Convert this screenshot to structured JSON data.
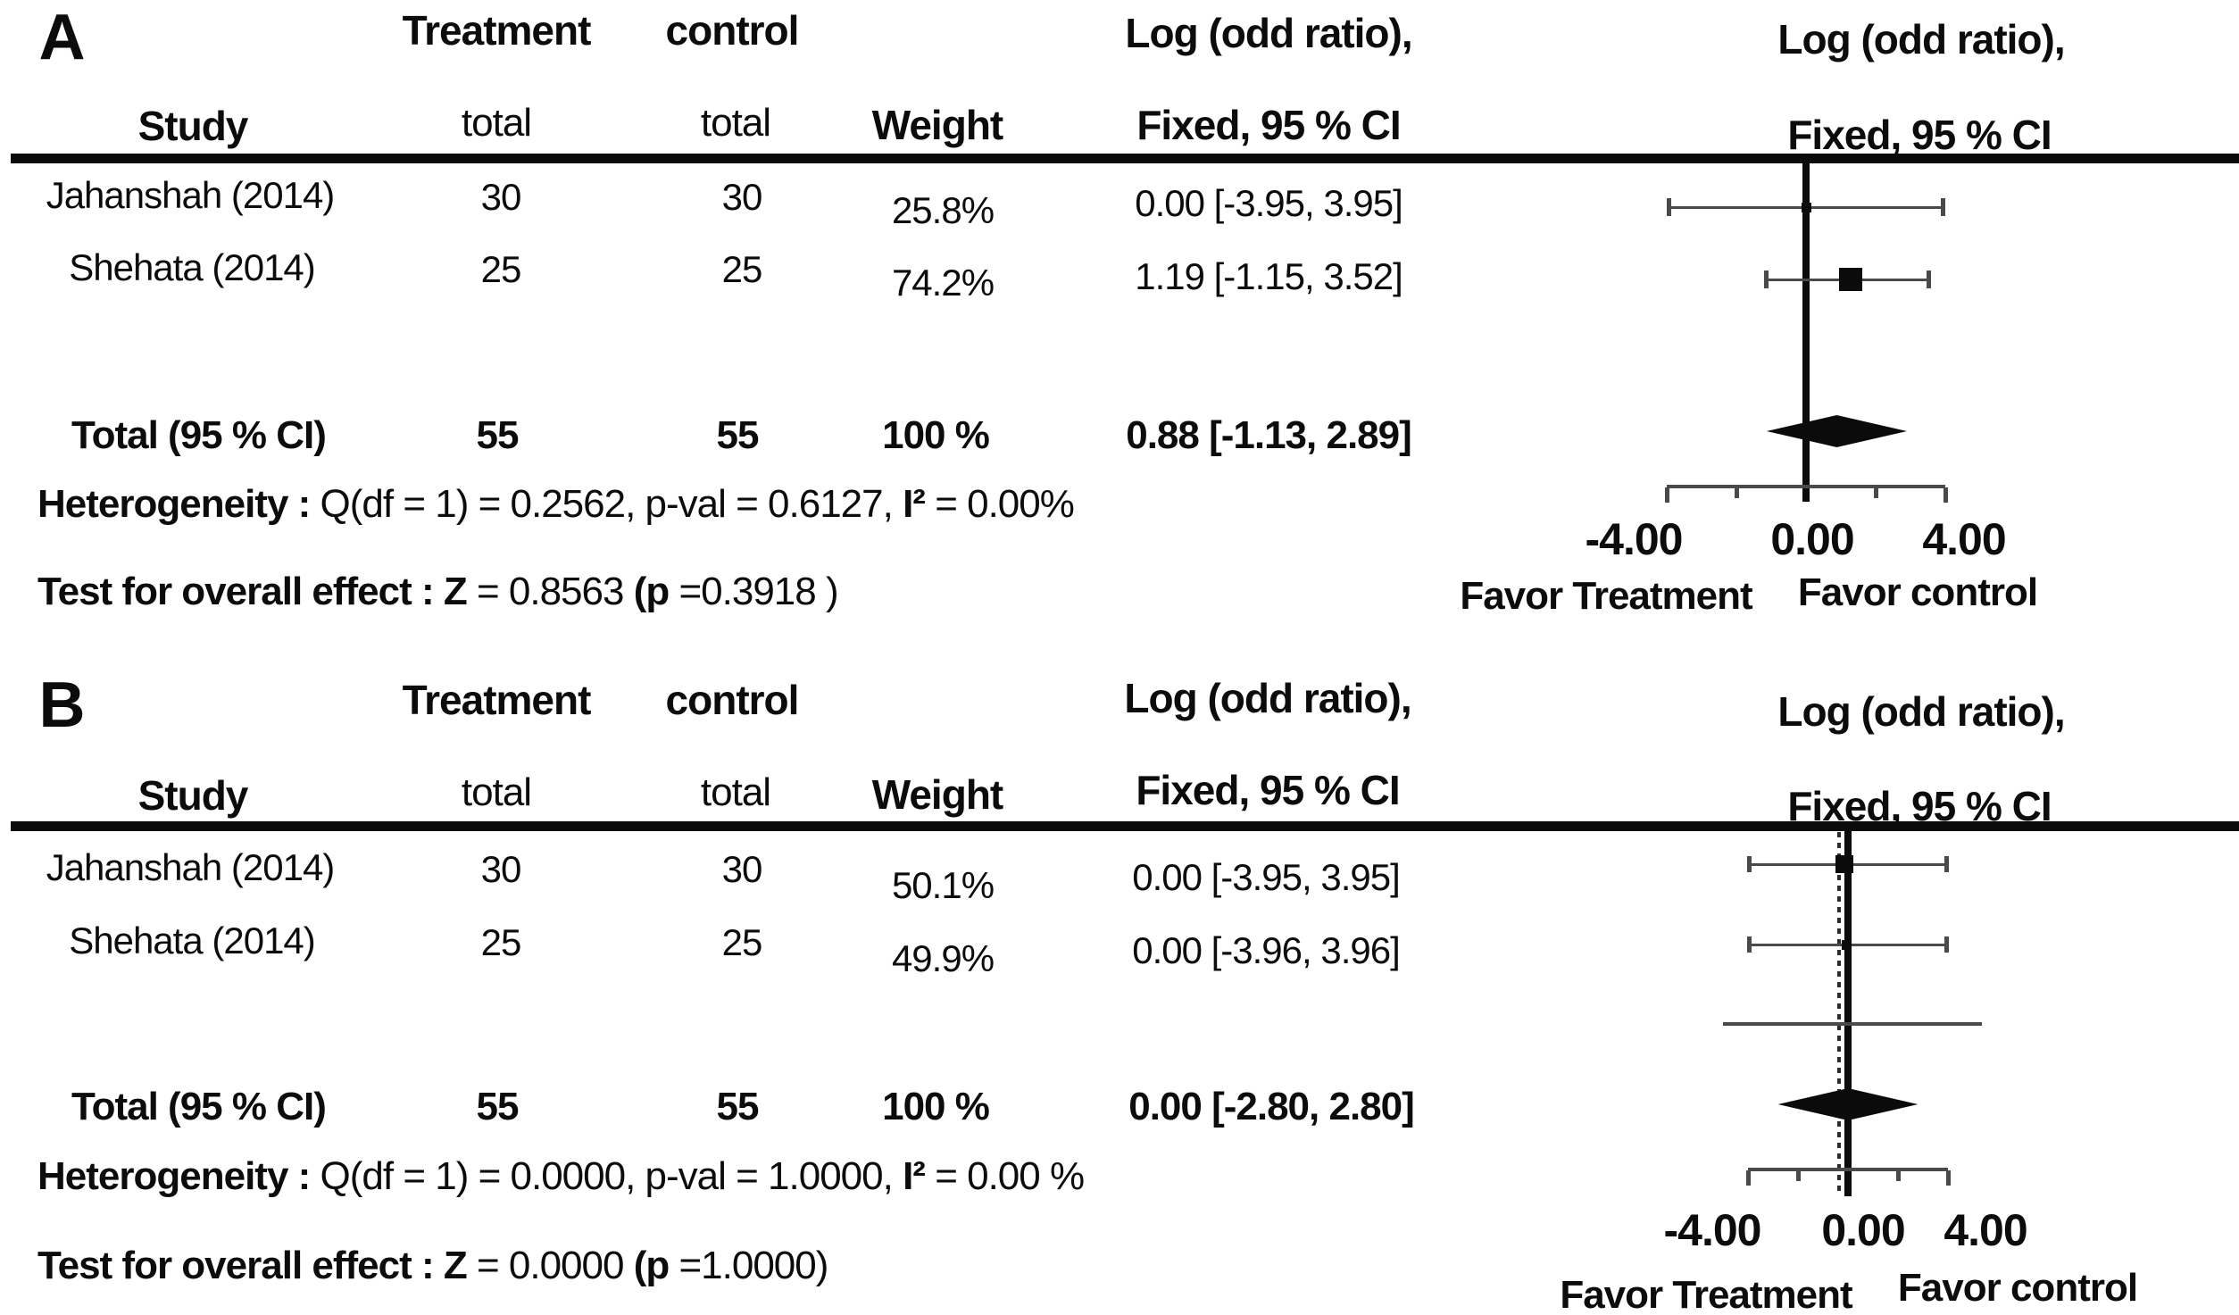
{
  "figure": {
    "panels": [
      {
        "panel_label": "A",
        "header": {
          "treatment": "Treatment",
          "control": "control",
          "study": "Study",
          "treatment_sub": "total",
          "control_sub": "total",
          "weight": "Weight",
          "effect_l1": "Log (odd ratio),",
          "effect_l2": "Fixed, 95 % CI",
          "plot_l1": "Log (odd ratio),",
          "plot_l2": "Fixed, 95 % CI"
        },
        "rows": [
          {
            "study": "Jahanshah (2014)",
            "treatment_total": "30",
            "control_total": "30",
            "weight": "25.8%",
            "ci_text": "0.00 [-3.95, 3.95]"
          },
          {
            "study": "Shehata (2014)",
            "treatment_total": "25",
            "control_total": "25",
            "weight": "74.2%",
            "ci_text": "1.19 [-1.15, 3.52]"
          }
        ],
        "total": {
          "label": "Total (95 % CI)",
          "treatment_total": "55",
          "control_total": "55",
          "weight": "100 %",
          "ci_text": "0.88 [-1.13, 2.89]"
        },
        "het_bold": "Heterogeneity :",
        "het_text": " Q(df = 1) = 0.2562, p-val = 0.6127, ",
        "het_i2": "I²",
        "het_tail": " = 0.00%",
        "test_bold": "Test for overall effect : Z",
        "test_mid": " = 0.8563 ",
        "test_pbold": "(p",
        "test_tail": " =0.3918 )",
        "axis_labels": [
          "-4.00",
          "0.00",
          "4.00"
        ],
        "favor_left": "Favor Treatment",
        "favor_right": "Favor control"
      },
      {
        "panel_label": "B",
        "header": {
          "treatment": "Treatment",
          "control": "control",
          "study": "Study",
          "treatment_sub": "total",
          "control_sub": "total",
          "weight": "Weight",
          "effect_l1": "Log (odd ratio),",
          "effect_l2": "Fixed, 95 % CI",
          "plot_l1": "Log (odd ratio),",
          "plot_l2": "Fixed, 95 % CI"
        },
        "rows": [
          {
            "study": "Jahanshah (2014)",
            "treatment_total": "30",
            "control_total": "30",
            "weight": "50.1%",
            "ci_text": "0.00 [-3.95, 3.95]"
          },
          {
            "study": "Shehata (2014)",
            "treatment_total": "25",
            "control_total": "25",
            "weight": "49.9%",
            "ci_text": "0.00 [-3.96, 3.96]"
          }
        ],
        "total": {
          "label": "Total (95 % CI)",
          "treatment_total": "55",
          "control_total": "55",
          "weight": "100 %",
          "ci_text": "0.00 [-2.80, 2.80]"
        },
        "het_bold": "Heterogeneity :",
        "het_text": " Q(df = 1) = 0.0000, p-val = 1.0000, ",
        "het_i2": "I²",
        "het_tail": " = 0.00 %",
        "test_bold": "Test for overall effect : Z",
        "test_mid": " = 0.0000 ",
        "test_pbold": "(p",
        "test_tail": " =1.0000)",
        "axis_labels": [
          "-4.00",
          "0.00",
          "4.00"
        ],
        "favor_left": "Favor Treatment",
        "favor_right": "Favor control"
      }
    ]
  },
  "chart_data": [
    {
      "type": "forest",
      "panel": "A",
      "effect_measure": "Log (odd ratio)",
      "model": "Fixed, 95 % CI",
      "studies": [
        {
          "name": "Jahanshah (2014)",
          "treatment_total": 30,
          "control_total": 30,
          "weight_pct": 25.8,
          "est": 0.0,
          "ci": [
            -3.95,
            3.95
          ]
        },
        {
          "name": "Shehata (2014)",
          "treatment_total": 25,
          "control_total": 25,
          "weight_pct": 74.2,
          "est": 1.19,
          "ci": [
            -1.15,
            3.52
          ]
        }
      ],
      "total": {
        "treatment_total": 55,
        "control_total": 55,
        "weight_pct": 100,
        "est": 0.88,
        "ci": [
          -1.13,
          2.89
        ]
      },
      "heterogeneity": {
        "Q": 0.2562,
        "df": 1,
        "p": 0.6127,
        "I2_pct": 0.0
      },
      "overall_effect": {
        "Z": 0.8563,
        "p": 0.3918
      },
      "axis": {
        "min": -4,
        "max": 4,
        "ticks": [
          -4,
          -2,
          0,
          2,
          4
        ],
        "tick_labels": [
          "-4.00",
          "0.00",
          "4.00"
        ],
        "zero_line": 0,
        "favor_left": "Favor Treatment",
        "favor_right": "Favor control"
      }
    },
    {
      "type": "forest",
      "panel": "B",
      "effect_measure": "Log (odd ratio)",
      "model": "Fixed, 95 % CI",
      "studies": [
        {
          "name": "Jahanshah (2014)",
          "treatment_total": 30,
          "control_total": 30,
          "weight_pct": 50.1,
          "est": 0.0,
          "ci": [
            -3.95,
            3.95
          ]
        },
        {
          "name": "Shehata (2014)",
          "treatment_total": 25,
          "control_total": 25,
          "weight_pct": 49.9,
          "est": 0.0,
          "ci": [
            -3.96,
            3.96
          ]
        }
      ],
      "extra_row_line": {
        "lo": -5.0,
        "hi": 5.35
      },
      "total": {
        "treatment_total": 55,
        "control_total": 55,
        "weight_pct": 100,
        "est": 0.0,
        "ci": [
          -2.8,
          2.8
        ]
      },
      "heterogeneity": {
        "Q": 0.0,
        "df": 1,
        "p": 1.0,
        "I2_pct": 0.0
      },
      "overall_effect": {
        "Z": 0.0,
        "p": 1.0
      },
      "axis": {
        "min": -4,
        "max": 4,
        "ticks": [
          -4,
          -2,
          0,
          2,
          4
        ],
        "tick_labels": [
          "-4.00",
          "0.00",
          "4.00"
        ],
        "zero_line": 0,
        "dotted_zero_line": true,
        "favor_left": "Favor Treatment",
        "favor_right": "Favor control"
      }
    }
  ]
}
